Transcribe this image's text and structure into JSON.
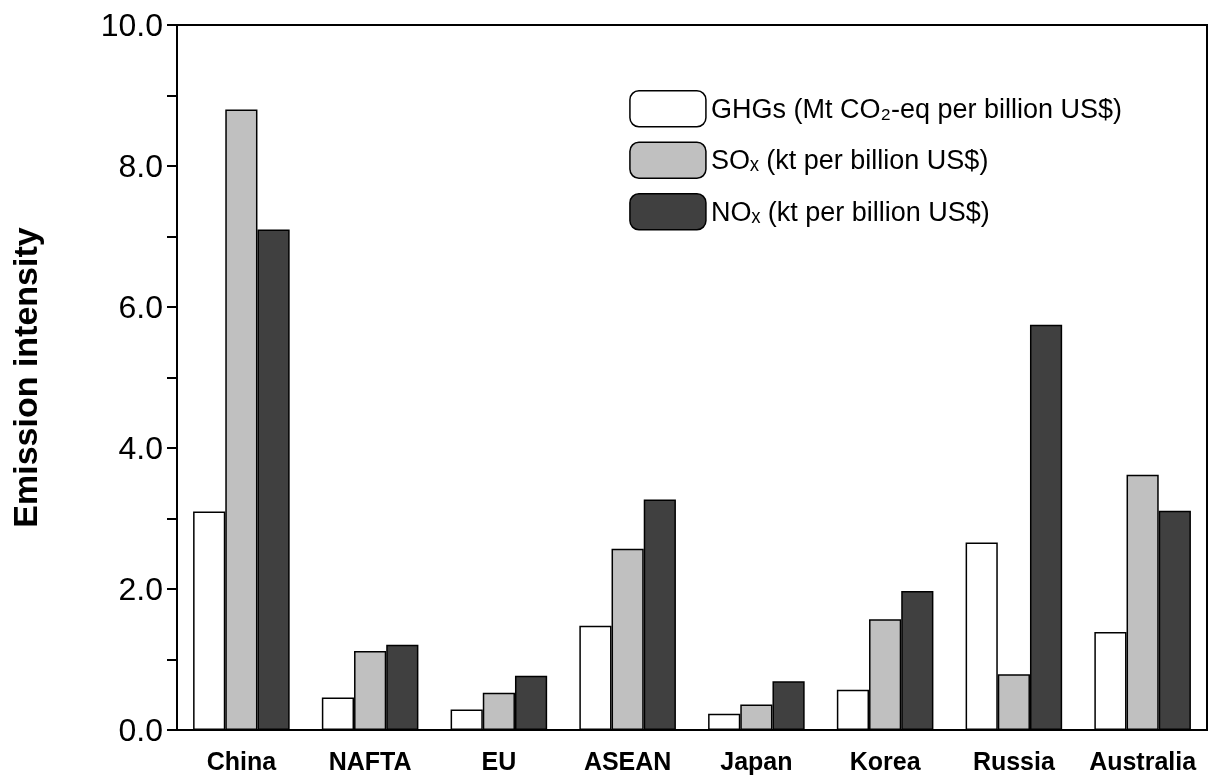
{
  "chart_data": {
    "type": "bar",
    "ylabel": "Emission intensity",
    "categories": [
      "China",
      "NAFTA",
      "EU",
      "ASEAN",
      "Japan",
      "Korea",
      "Russia",
      "Australia"
    ],
    "series": [
      {
        "name": "GHGs (Mt CO₂-eq per billion US$)",
        "color": "#ffffff",
        "values": [
          3.1,
          0.46,
          0.29,
          1.48,
          0.23,
          0.57,
          2.66,
          1.39
        ]
      },
      {
        "name": "SOₓ (kt per billion US$)",
        "color": "#c0c0c0",
        "values": [
          8.8,
          1.12,
          0.53,
          2.57,
          0.36,
          1.57,
          0.79,
          3.62
        ]
      },
      {
        "name": "NOₓ (kt per billion US$)",
        "color": "#404040",
        "values": [
          7.1,
          1.21,
          0.77,
          3.27,
          0.69,
          1.97,
          5.75,
          3.11
        ]
      }
    ],
    "ylim": [
      0,
      10
    ],
    "yticks": [
      {
        "value": 0,
        "label": "0.0"
      },
      {
        "value": 1,
        "label": null
      },
      {
        "value": 2,
        "label": "2.0"
      },
      {
        "value": 3,
        "label": null
      },
      {
        "value": 4,
        "label": "4.0"
      },
      {
        "value": 5,
        "label": null
      },
      {
        "value": 6,
        "label": "6.0"
      },
      {
        "value": 7,
        "label": null
      },
      {
        "value": 8,
        "label": "8.0"
      },
      {
        "value": 9,
        "label": null
      },
      {
        "value": 10,
        "label": "10.0"
      }
    ],
    "grid": false,
    "legend": "top right"
  }
}
